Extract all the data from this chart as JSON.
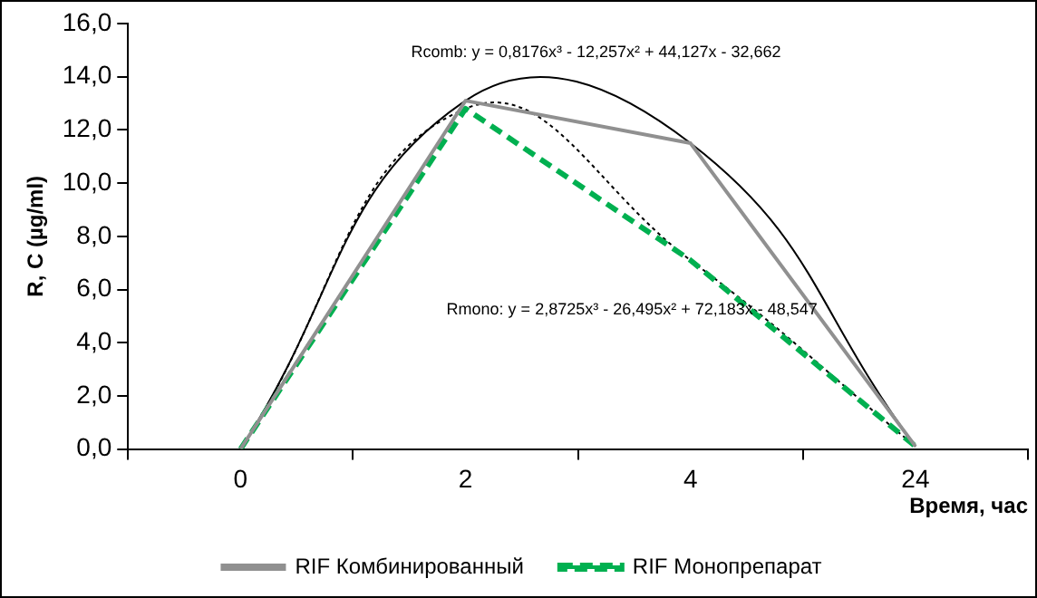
{
  "chart_data": {
    "type": "line",
    "xlabel": "Время, час",
    "ylabel": "R, C (µg/ml)",
    "legend": "bottom",
    "marker": "none",
    "grid": false,
    "categories": [
      "0",
      "2",
      "4",
      "24"
    ],
    "ylim": [
      0,
      16
    ],
    "yticks": [
      {
        "value": 0,
        "label": "0,0"
      },
      {
        "value": 2,
        "label": "2,0"
      },
      {
        "value": 4,
        "label": "4,0"
      },
      {
        "value": 6,
        "label": "6,0"
      },
      {
        "value": 8,
        "label": "8,0"
      },
      {
        "value": 10,
        "label": "10,0"
      },
      {
        "value": 12,
        "label": "12,0"
      },
      {
        "value": 14,
        "label": "14,0"
      },
      {
        "value": 16,
        "label": "16,0"
      }
    ],
    "annotations": [
      "Rcomb: y = 0,8176x³ - 12,257x² + 44,127x - 32,662",
      "Rmono: y = 2,8725x³ - 26,495x² + 72,183x - 48,547"
    ],
    "series": [
      {
        "name": "RIF Комбинированный",
        "color": "#909090",
        "line_style": "solid",
        "values": [
          0,
          13.1,
          11.5,
          0.1
        ]
      },
      {
        "name": "RIF Монопрепарат",
        "color": "#00b050",
        "line_style": "dashed",
        "values": [
          0,
          12.8,
          7.1,
          0.1
        ]
      },
      {
        "color": "#000000",
        "line_style": "solid",
        "values": [
          0,
          13.1,
          11.5,
          0.1
        ]
      },
      {
        "color": "#000000",
        "line_style": "dotted",
        "values": [
          0,
          12.8,
          7.1,
          0.1
        ]
      }
    ]
  }
}
